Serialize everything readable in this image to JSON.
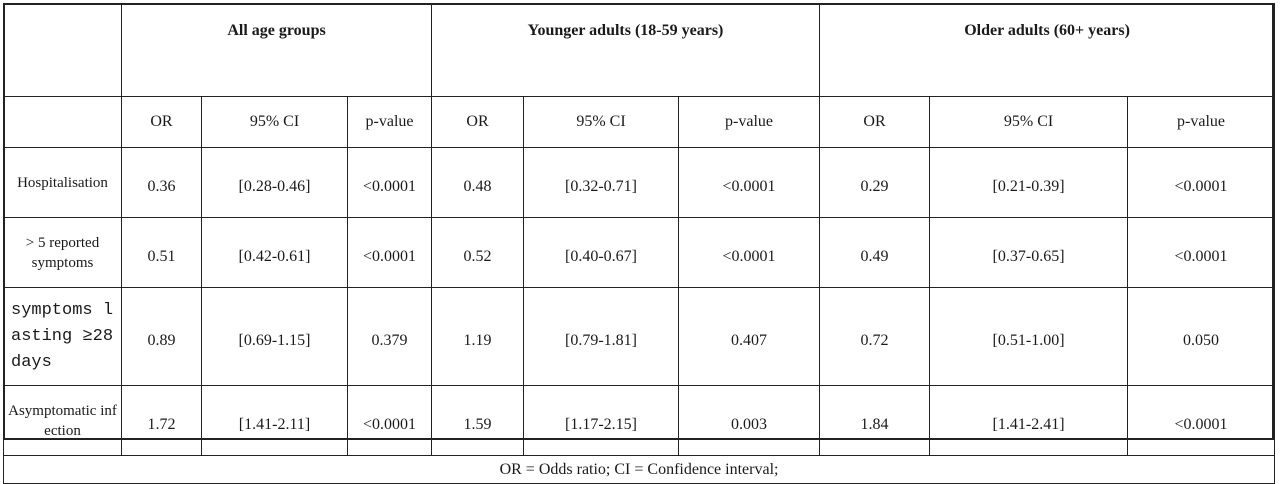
{
  "groups": [
    "All age groups",
    "Younger adults (18-59 years)",
    "Older  adults (60+ years)"
  ],
  "subheaders": [
    "OR",
    "95% CI",
    "p-value"
  ],
  "rows": [
    {
      "label": "Hospitalisation",
      "values": [
        "0.36",
        "[0.28-0.46]",
        "<0.0001",
        "0.48",
        "[0.32-0.71]",
        "<0.0001",
        "0.29",
        "[0.21-0.39]",
        "<0.0001"
      ]
    },
    {
      "label": "> 5 reported symptoms",
      "values": [
        "0.51",
        "[0.42-0.61]",
        "<0.0001",
        "0.52",
        "[0.40-0.67]",
        "<0.0001",
        "0.49",
        "[0.37-0.65]",
        "<0.0001"
      ]
    },
    {
      "label": "symptoms lasting ≥28 days",
      "values": [
        "0.89",
        "[0.69-1.15]",
        "0.379",
        "1.19",
        "[0.79-1.81]",
        "0.407",
        "0.72",
        "[0.51-1.00]",
        "0.050"
      ]
    },
    {
      "label": "Asymptomatic infection",
      "values": [
        "1.72",
        "[1.41-2.11]",
        "<0.0001",
        "1.59",
        "[1.17-2.15]",
        "0.003",
        "1.84",
        "[1.41-2.41]",
        "<0.0001"
      ]
    }
  ],
  "footnote": "OR = Odds ratio; CI = Confidence interval;"
}
